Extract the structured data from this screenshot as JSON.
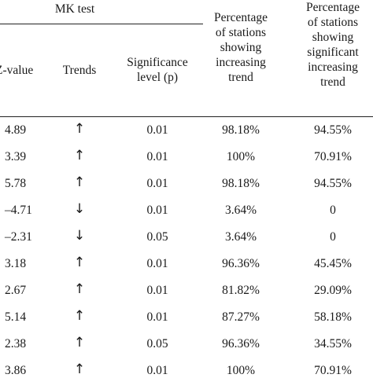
{
  "header": {
    "group_label": "MK test",
    "z_value": "Z-value",
    "trends": "Trends",
    "significance": [
      "Significance",
      "level (p)"
    ],
    "pct_increasing": [
      "Percentage",
      "of stations",
      "showing",
      "increasing",
      "trend"
    ],
    "pct_sig_increasing": [
      "Percentage",
      "of stations",
      "showing",
      "significant",
      "increasing",
      "trend"
    ]
  },
  "rows": [
    {
      "z": "4.89",
      "trend": "↑",
      "p": "0.01",
      "pct": "98.18%",
      "sig": "94.55%"
    },
    {
      "z": "3.39",
      "trend": "↑",
      "p": "0.01",
      "pct": "100%",
      "sig": "70.91%"
    },
    {
      "z": "5.78",
      "trend": "↑",
      "p": "0.01",
      "pct": "98.18%",
      "sig": "94.55%"
    },
    {
      "z": "–4.71",
      "trend": "↓",
      "p": "0.01",
      "pct": "3.64%",
      "sig": "0"
    },
    {
      "z": "–2.31",
      "trend": "↓",
      "p": "0.05",
      "pct": "3.64%",
      "sig": "0"
    },
    {
      "z": "3.18",
      "trend": "↑",
      "p": "0.01",
      "pct": "96.36%",
      "sig": "45.45%"
    },
    {
      "z": "2.67",
      "trend": "↑",
      "p": "0.01",
      "pct": "81.82%",
      "sig": "29.09%"
    },
    {
      "z": "5.14",
      "trend": "↑",
      "p": "0.01",
      "pct": "87.27%",
      "sig": "58.18%"
    },
    {
      "z": "2.38",
      "trend": "↑",
      "p": "0.05",
      "pct": "96.36%",
      "sig": "34.55%"
    },
    {
      "z": "3.86",
      "trend": "↑",
      "p": "0.01",
      "pct": "100%",
      "sig": "70.91%"
    }
  ]
}
